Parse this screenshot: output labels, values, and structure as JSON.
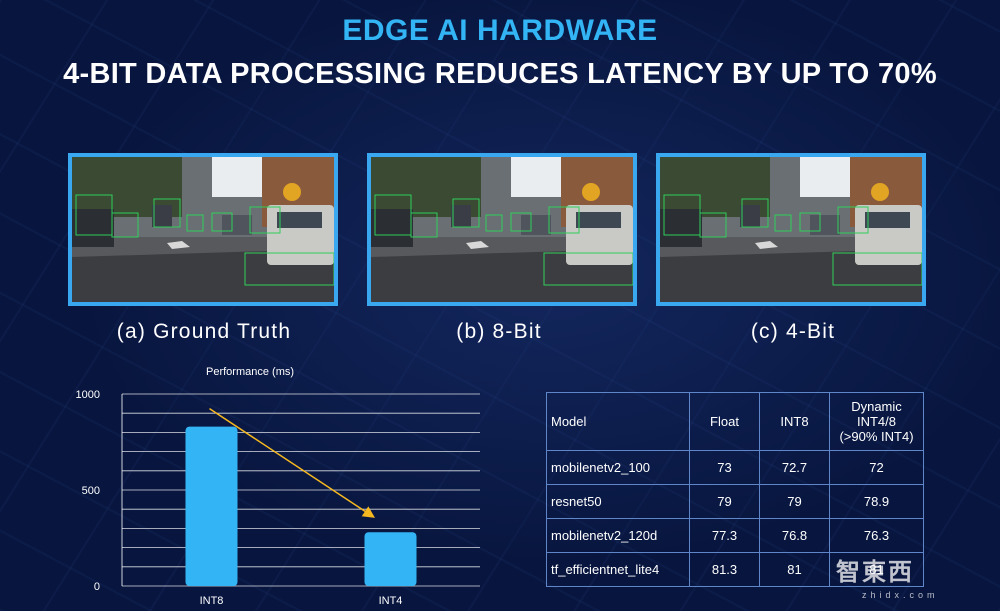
{
  "header": {
    "title": "EDGE AI HARDWARE",
    "subtitle": "4-BIT DATA PROCESSING REDUCES LATENCY BY UP TO 70%"
  },
  "panels": [
    {
      "caption": "(a) Ground Truth"
    },
    {
      "caption": "(b) 8-Bit"
    },
    {
      "caption": "(c) 4-Bit"
    }
  ],
  "chart_data": {
    "type": "bar",
    "title": "Performance (ms)",
    "categories": [
      "INT8",
      "INT4"
    ],
    "values": [
      830,
      280
    ],
    "ylim": [
      0,
      1000
    ],
    "yticks": [
      0,
      500,
      1000
    ],
    "grid": true,
    "bar_color": "#33b5f5",
    "annotation": "trend arrow from INT8 to INT4",
    "arrow_color": "#f5b820"
  },
  "table": {
    "headers": [
      "Model",
      "Float",
      "INT8",
      "Dynamic INT4/8 (>90% INT4)"
    ],
    "header_dyn_lines": [
      "Dynamic",
      "INT4/8",
      "(>90% INT4)"
    ],
    "rows": [
      [
        "mobilenetv2_100",
        "73",
        "72.7",
        "72"
      ],
      [
        "resnet50",
        "79",
        "79",
        "78.9"
      ],
      [
        "mobilenetv2_120d",
        "77.3",
        "76.8",
        "76.3"
      ],
      [
        "tf_efficientnet_lite4",
        "81.3",
        "81",
        "81"
      ]
    ]
  },
  "watermark": {
    "text": "智東西",
    "sub": "zhidx.com"
  }
}
